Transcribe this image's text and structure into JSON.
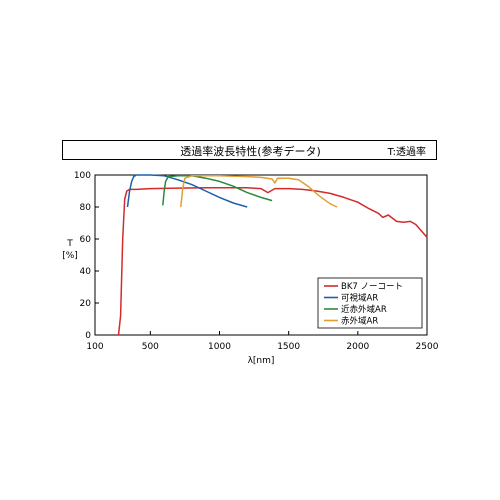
{
  "chart_data": {
    "type": "line",
    "title": "透過率波長特性(参考データ)",
    "title_right": "T:透過率",
    "xlabel": "λ[nm]",
    "ylabel_top": "T",
    "ylabel_unit": "[%]",
    "xlim": [
      100,
      2500
    ],
    "ylim": [
      0,
      100
    ],
    "xticks": [
      100,
      500,
      1000,
      1500,
      2000,
      2500
    ],
    "yticks": [
      0,
      20,
      40,
      60,
      80,
      100
    ],
    "grid": false,
    "legend_position": "bottom-right",
    "series": [
      {
        "name": "BK7 ノーコート",
        "color": "#d42a2a",
        "points": [
          [
            270,
            0
          ],
          [
            285,
            12
          ],
          [
            300,
            60
          ],
          [
            315,
            85
          ],
          [
            330,
            90
          ],
          [
            350,
            91
          ],
          [
            400,
            91
          ],
          [
            500,
            91.5
          ],
          [
            700,
            91.8
          ],
          [
            900,
            92
          ],
          [
            1100,
            92
          ],
          [
            1200,
            92
          ],
          [
            1300,
            91.5
          ],
          [
            1350,
            89
          ],
          [
            1400,
            91.5
          ],
          [
            1500,
            91.5
          ],
          [
            1600,
            91
          ],
          [
            1700,
            90
          ],
          [
            1800,
            88.5
          ],
          [
            1900,
            86
          ],
          [
            2000,
            83
          ],
          [
            2080,
            79
          ],
          [
            2150,
            76
          ],
          [
            2180,
            73.5
          ],
          [
            2220,
            75
          ],
          [
            2280,
            71
          ],
          [
            2330,
            70.5
          ],
          [
            2380,
            71
          ],
          [
            2420,
            69
          ],
          [
            2460,
            65
          ],
          [
            2500,
            61
          ]
        ]
      },
      {
        "name": "可視域AR",
        "color": "#1f5fa8",
        "points": [
          [
            335,
            80
          ],
          [
            350,
            90
          ],
          [
            365,
            96
          ],
          [
            380,
            99
          ],
          [
            400,
            100
          ],
          [
            500,
            100
          ],
          [
            600,
            99.5
          ],
          [
            700,
            97
          ],
          [
            800,
            94
          ],
          [
            900,
            90
          ],
          [
            1000,
            86
          ],
          [
            1100,
            82.5
          ],
          [
            1200,
            80
          ]
        ]
      },
      {
        "name": "近赤外域AR",
        "color": "#2a8a3a",
        "points": [
          [
            590,
            81
          ],
          [
            600,
            90
          ],
          [
            610,
            96
          ],
          [
            630,
            99
          ],
          [
            700,
            99.5
          ],
          [
            800,
            99.5
          ],
          [
            900,
            98
          ],
          [
            1000,
            96
          ],
          [
            1100,
            93
          ],
          [
            1200,
            89
          ],
          [
            1300,
            86
          ],
          [
            1380,
            84
          ]
        ]
      },
      {
        "name": "赤外域AR",
        "color": "#e0a032",
        "points": [
          [
            720,
            80
          ],
          [
            735,
            92
          ],
          [
            750,
            98
          ],
          [
            800,
            99.5
          ],
          [
            1000,
            99.5
          ],
          [
            1200,
            99
          ],
          [
            1300,
            98.5
          ],
          [
            1380,
            97.5
          ],
          [
            1400,
            95
          ],
          [
            1420,
            98
          ],
          [
            1500,
            98
          ],
          [
            1570,
            97
          ],
          [
            1640,
            93
          ],
          [
            1720,
            87
          ],
          [
            1800,
            82
          ],
          [
            1850,
            80
          ]
        ]
      }
    ]
  }
}
